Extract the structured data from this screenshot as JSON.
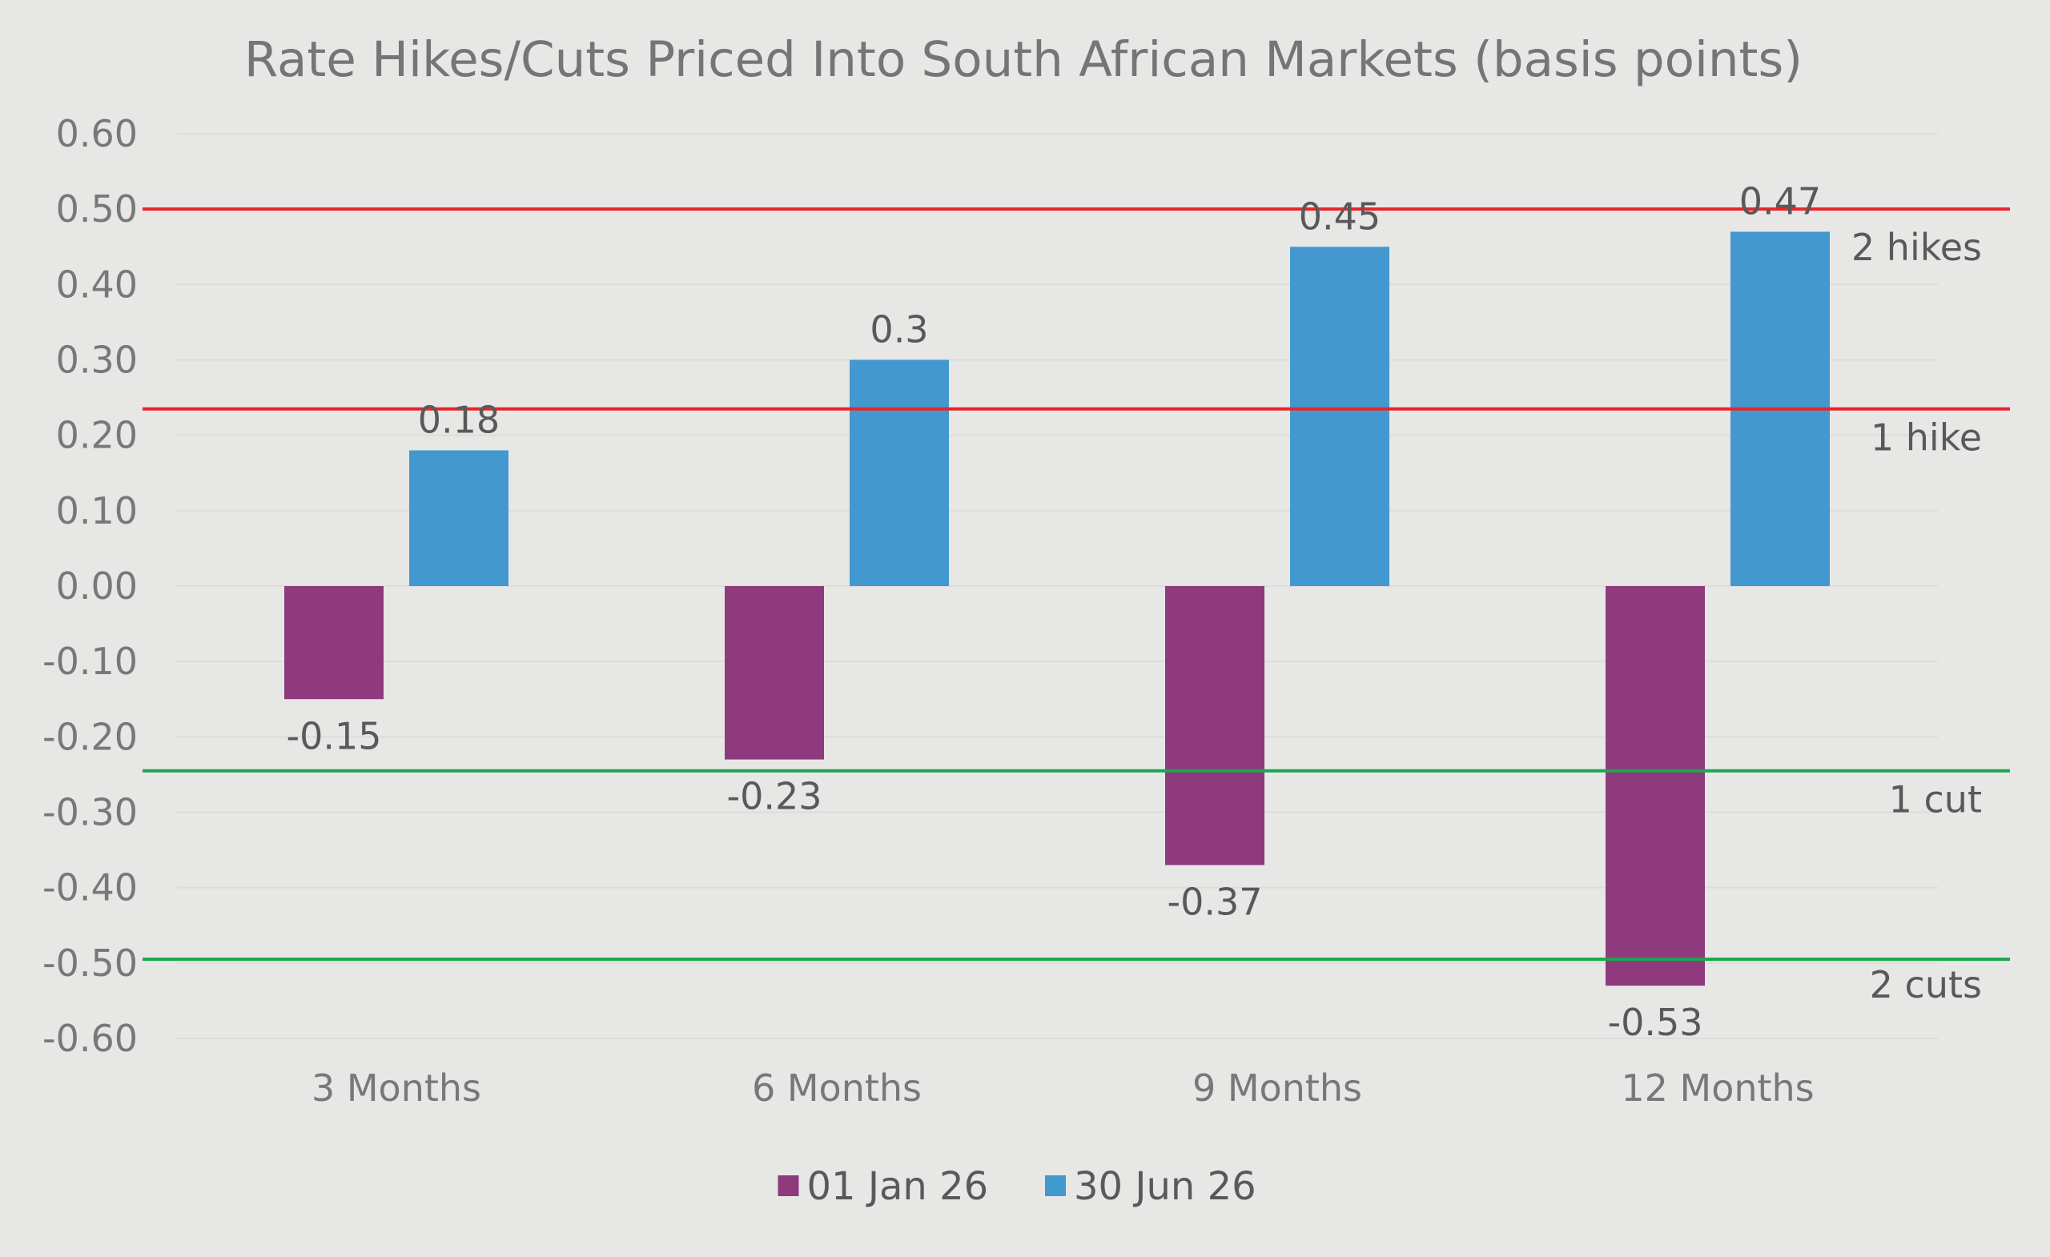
{
  "chart_data": {
    "type": "bar",
    "title": "Rate Hikes/Cuts Priced Into South African Markets (basis points)",
    "categories": [
      "3 Months",
      "6 Months",
      "9 Months",
      "12 Months"
    ],
    "series": [
      {
        "name": "01 Jan 26",
        "color": "#8e3a7d",
        "values": [
          -0.15,
          -0.23,
          -0.37,
          -0.53
        ],
        "labels": [
          "-0.15",
          "-0.23",
          "-0.37",
          "-0.53"
        ]
      },
      {
        "name": "30 Jun 26",
        "color": "#4298cf",
        "values": [
          0.18,
          0.3,
          0.45,
          0.47
        ],
        "labels": [
          "0.18",
          "0.3",
          "0.45",
          "0.47"
        ]
      }
    ],
    "ylim": [
      -0.6,
      0.6
    ],
    "yticks": [
      0.6,
      0.5,
      0.4,
      0.3,
      0.2,
      0.1,
      0.0,
      -0.1,
      -0.2,
      -0.3,
      -0.4,
      -0.5,
      -0.6
    ],
    "ytick_labels": [
      "0.60",
      "0.50",
      "0.40",
      "0.30",
      "0.20",
      "0.10",
      "0.00",
      "-0.10",
      "-0.20",
      "-0.30",
      "-0.40",
      "-0.50",
      "-0.60"
    ],
    "grid": true,
    "legend_position": "bottom",
    "reference_lines": [
      {
        "label": "2 hikes",
        "value": 0.5,
        "color": "#e8242a"
      },
      {
        "label": "1 hike",
        "value": 0.235,
        "color": "#e8242a"
      },
      {
        "label": "1 cut",
        "value": -0.245,
        "color": "#1ca64e"
      },
      {
        "label": "2 cuts",
        "value": -0.495,
        "color": "#1ca64e"
      }
    ]
  }
}
